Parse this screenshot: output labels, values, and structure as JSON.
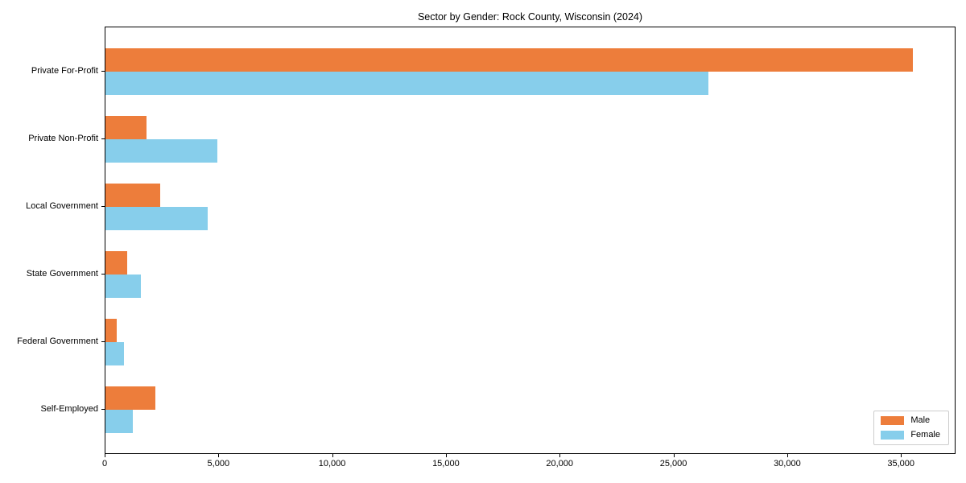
{
  "chart_data": {
    "type": "bar",
    "orientation": "horizontal",
    "title": "Sector by Gender: Rock County, Wisconsin (2024)",
    "categories": [
      "Private For-Profit",
      "Private Non-Profit",
      "Local Government",
      "State Government",
      "Federal Government",
      "Self-Employed"
    ],
    "series": [
      {
        "name": "Male",
        "color": "#ED7D3B",
        "values": [
          35500,
          1800,
          2400,
          950,
          500,
          2200
        ]
      },
      {
        "name": "Female",
        "color": "#87CEEB",
        "values": [
          26500,
          4900,
          4500,
          1550,
          800,
          1200
        ]
      }
    ],
    "xlabel": "",
    "ylabel": "",
    "xlim": [
      0,
      37400
    ],
    "xticks": [
      0,
      5000,
      10000,
      15000,
      20000,
      25000,
      30000,
      35000
    ],
    "xtick_labels": [
      "0",
      "5,000",
      "10,000",
      "15,000",
      "20,000",
      "25,000",
      "30,000",
      "35,000"
    ],
    "legend_position": "lower right",
    "grid": false,
    "axis_color": "#000000",
    "legend_border_color": "#cccccc"
  }
}
